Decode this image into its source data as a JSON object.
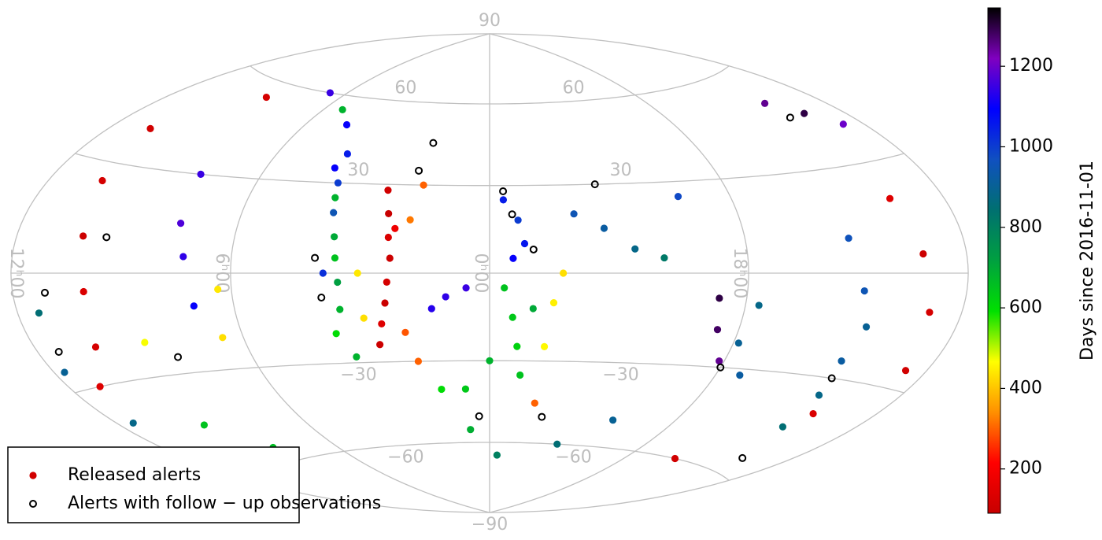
{
  "chart_data": {
    "type": "scatter",
    "projection": "hammer",
    "lat_ticks": [
      {
        "value": -90,
        "label": "−90"
      },
      {
        "value": -60,
        "label": "−60"
      },
      {
        "value": -30,
        "label": "−30"
      },
      30,
      60,
      90
    ],
    "lon_ticks": [
      {
        "value": 180,
        "label": "12ʰ00"
      },
      {
        "value": 90,
        "label": "6ʰ00"
      },
      {
        "value": 0,
        "label": "0ʰ00"
      },
      {
        "value": -90,
        "label": "18ʰ00"
      }
    ],
    "grid": true,
    "colorbar": {
      "label": "Days since 2016-11-01",
      "clim": [
        90,
        1345
      ],
      "ticks": [
        200,
        400,
        600,
        800,
        1000,
        1200
      ],
      "colormap": [
        "#c80000",
        "#ff0000",
        "#ff9000",
        "#ffff00",
        "#00e000",
        "#00a040",
        "#007070",
        "#1050c0",
        "#0000ff",
        "#8000c0",
        "#000000"
      ]
    },
    "legend": "lower left",
    "series": [
      {
        "name": "Released alerts",
        "marker": "filled",
        "x": [
          38,
          36,
          35,
          34,
          35,
          36,
          38,
          40,
          33,
          25,
          28,
          30,
          27,
          60,
          58,
          56,
          54,
          53,
          52,
          52,
          55,
          62,
          57,
          57,
          50,
          45,
          44,
          -5,
          -10,
          -12,
          -8,
          8,
          15,
          20,
          -5,
          -8,
          -10,
          -12,
          -15,
          0,
          10,
          20,
          -22,
          -20,
          -25,
          -30,
          -40,
          -50,
          -60,
          -70,
          -80,
          -82,
          -88,
          -92,
          -95,
          -100,
          -140,
          -138,
          -142,
          -145,
          -135,
          -130,
          -160,
          -165,
          -170,
          -155,
          -150,
          -150,
          -160,
          -170,
          160,
          155,
          150,
          148,
          152,
          165,
          115,
          112,
          108,
          105,
          170,
          175,
          172,
          95,
          98,
          130,
          140,
          125,
          10,
          -5,
          -40,
          -60,
          -20,
          -120,
          130,
          100,
          80,
          70
        ],
        "y": [
          28,
          20,
          12,
          5,
          -3,
          -10,
          -17,
          -24,
          15,
          30,
          18,
          -20,
          -30,
          40,
          30,
          20,
          12,
          5,
          -3,
          -12,
          -20,
          35,
          25,
          0,
          -28,
          0,
          -15,
          25,
          18,
          10,
          5,
          -5,
          -8,
          -12,
          -5,
          -15,
          -25,
          -35,
          -12,
          -30,
          -40,
          -40,
          -10,
          -25,
          0,
          20,
          15,
          8,
          5,
          25,
          -8,
          -18,
          -28,
          -22,
          -10,
          -32,
          -15,
          -25,
          -35,
          -45,
          -5,
          10,
          5,
          -10,
          -25,
          20,
          -40,
          50,
          45,
          40,
          40,
          25,
          10,
          -5,
          -20,
          -30,
          30,
          15,
          5,
          -10,
          -10,
          -25,
          -40,
          -5,
          -20,
          -20,
          -45,
          -55,
          -55,
          -65,
          -60,
          -50,
          -45,
          -60,
          55,
          60,
          55,
          50
        ],
        "c": [
          110,
          90,
          130,
          100,
          120,
          95,
          140,
          100,
          180,
          300,
          320,
          290,
          300,
          1050,
          1000,
          950,
          700,
          650,
          720,
          680,
          600,
          1100,
          680,
          1020,
          680,
          440,
          430,
          1050,
          1000,
          1060,
          1100,
          1150,
          1140,
          1130,
          650,
          640,
          620,
          650,
          700,
          680,
          640,
          600,
          450,
          460,
          430,
          950,
          920,
          880,
          820,
          980,
          1300,
          1280,
          1250,
          900,
          880,
          920,
          900,
          920,
          880,
          850,
          950,
          960,
          100,
          120,
          110,
          140,
          130,
          1250,
          1300,
          1200,
          110,
          120,
          100,
          130,
          120,
          140,
          1150,
          1170,
          1140,
          1100,
          850,
          900,
          880,
          440,
          430,
          470,
          650,
          660,
          690,
          800,
          850,
          900,
          300,
          110,
          120,
          1150,
          680,
          1100
        ]
      },
      {
        "name": "Alerts with follow − up observations",
        "marker": "hollow",
        "color": "#000000",
        "x": [
          25,
          28,
          -5,
          -8,
          -15,
          60,
          58,
          165,
          170,
          120,
          -40,
          -90,
          -140,
          -150,
          -25,
          5,
          -155,
          140
        ],
        "y": [
          45,
          35,
          28,
          20,
          8,
          5,
          -8,
          -5,
          -20,
          -25,
          30,
          -30,
          -30,
          45,
          -50,
          -50,
          -55,
          10
        ]
      }
    ]
  }
}
